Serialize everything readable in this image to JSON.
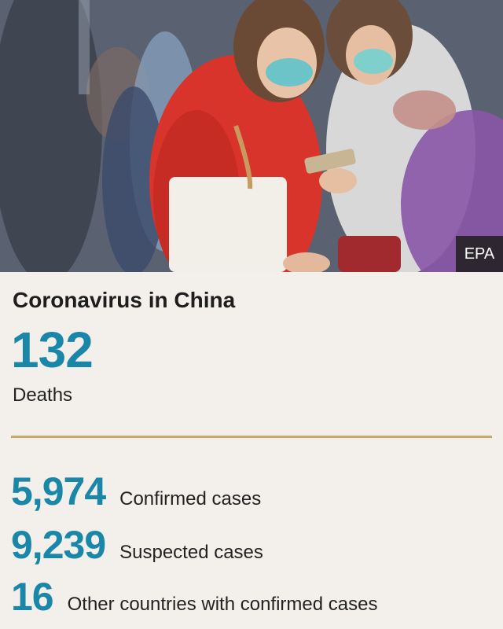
{
  "image": {
    "credit": "EPA"
  },
  "headline": "Coronavirus in China",
  "deaths": {
    "value": "132",
    "label": "Deaths"
  },
  "stats": [
    {
      "value": "5,974",
      "label": "Confirmed cases"
    },
    {
      "value": "9,239",
      "label": "Suspected cases"
    },
    {
      "value": "16",
      "label": "Other countries with confirmed cases"
    }
  ],
  "colors": {
    "accent_number": "#1a86a8",
    "divider": "#c8a96b",
    "panel_background": "#f3f0ec"
  }
}
